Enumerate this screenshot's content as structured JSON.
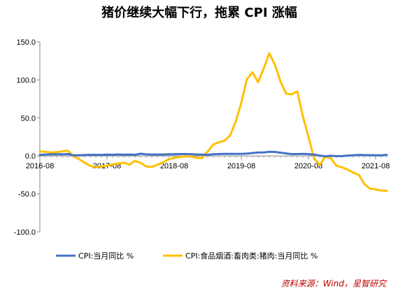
{
  "chart_data": {
    "type": "line",
    "title": "猪价继续大幅下行，拖累 CPI 涨幅",
    "xlabel": "",
    "ylabel": "",
    "ylim": [
      -100,
      150
    ],
    "y_ticks": [
      "150.0",
      "100.0",
      "50.0",
      "0.0",
      "-50.0",
      "-100.0"
    ],
    "x_ticks": [
      "2016-08",
      "2017-08",
      "2018-08",
      "2019-08",
      "2020-08",
      "2021-08"
    ],
    "x_range": [
      "2016-08",
      "2021-10"
    ],
    "grid": false,
    "legend_position": "bottom",
    "colors": {
      "cpi": "#4472c4",
      "pork": "#ffc000"
    },
    "x": [
      "2016-08",
      "2016-09",
      "2016-10",
      "2016-11",
      "2016-12",
      "2017-01",
      "2017-02",
      "2017-03",
      "2017-04",
      "2017-05",
      "2017-06",
      "2017-07",
      "2017-08",
      "2017-09",
      "2017-10",
      "2017-11",
      "2017-12",
      "2018-01",
      "2018-02",
      "2018-03",
      "2018-04",
      "2018-05",
      "2018-06",
      "2018-07",
      "2018-08",
      "2018-09",
      "2018-10",
      "2018-11",
      "2018-12",
      "2019-01",
      "2019-02",
      "2019-03",
      "2019-04",
      "2019-05",
      "2019-06",
      "2019-07",
      "2019-08",
      "2019-09",
      "2019-10",
      "2019-11",
      "2019-12",
      "2020-01",
      "2020-02",
      "2020-03",
      "2020-04",
      "2020-05",
      "2020-06",
      "2020-07",
      "2020-08",
      "2020-09",
      "2020-10",
      "2020-11",
      "2020-12",
      "2021-01",
      "2021-02",
      "2021-03",
      "2021-04",
      "2021-05",
      "2021-06",
      "2021-07",
      "2021-08",
      "2021-09",
      "2021-10"
    ],
    "series": [
      {
        "name": "CPI:当月同比 %",
        "color": "#4472c4",
        "values": [
          1.3,
          1.9,
          2.1,
          2.3,
          2.1,
          2.5,
          0.8,
          0.9,
          1.2,
          1.5,
          1.5,
          1.4,
          1.8,
          1.6,
          1.9,
          1.7,
          1.8,
          1.5,
          2.9,
          2.1,
          1.8,
          1.8,
          1.9,
          2.1,
          2.3,
          2.5,
          2.5,
          2.2,
          1.9,
          1.7,
          1.5,
          2.3,
          2.5,
          2.7,
          2.7,
          2.8,
          2.8,
          3.0,
          3.8,
          4.5,
          4.5,
          5.4,
          5.2,
          4.3,
          3.3,
          2.4,
          2.5,
          2.7,
          2.4,
          1.7,
          0.5,
          -0.5,
          0.2,
          -0.3,
          -0.2,
          0.4,
          0.9,
          1.3,
          1.1,
          1.0,
          0.8,
          0.7,
          1.5
        ]
      },
      {
        "name": "CPI:食品烟酒:畜肉类:猪肉:当月同比 %",
        "color": "#ffc000",
        "values": [
          6.0,
          5.5,
          4.5,
          5.0,
          6.0,
          7.0,
          -0.5,
          -4.0,
          -9.0,
          -13.0,
          -15.0,
          -14.0,
          -13.0,
          -11.0,
          -10.0,
          -9.0,
          -11.5,
          -6.5,
          -9.0,
          -14.0,
          -14.5,
          -11.5,
          -8.5,
          -4.5,
          -2.5,
          -1.5,
          -0.5,
          -1.0,
          -2.5,
          -3.0,
          6.0,
          15.0,
          18.0,
          20.0,
          27.0,
          45.0,
          70.0,
          101.0,
          110.0,
          97.0,
          115.0,
          135.0,
          120.0,
          98.0,
          82.0,
          81.0,
          85.0,
          52.0,
          25.0,
          -3.0,
          -12.0,
          -1.0,
          -3.0,
          -13.0,
          -15.0,
          -18.0,
          -22.0,
          -25.0,
          -37.0,
          -43.0,
          -44.0,
          -45.5,
          -46.0
        ]
      }
    ]
  },
  "legend": {
    "items": [
      "CPI:当月同比 %",
      "CPI:食品烟酒:畜肉类:猪肉:当月同比 %"
    ]
  },
  "source_note": "资料来源：Wind，星智研究"
}
